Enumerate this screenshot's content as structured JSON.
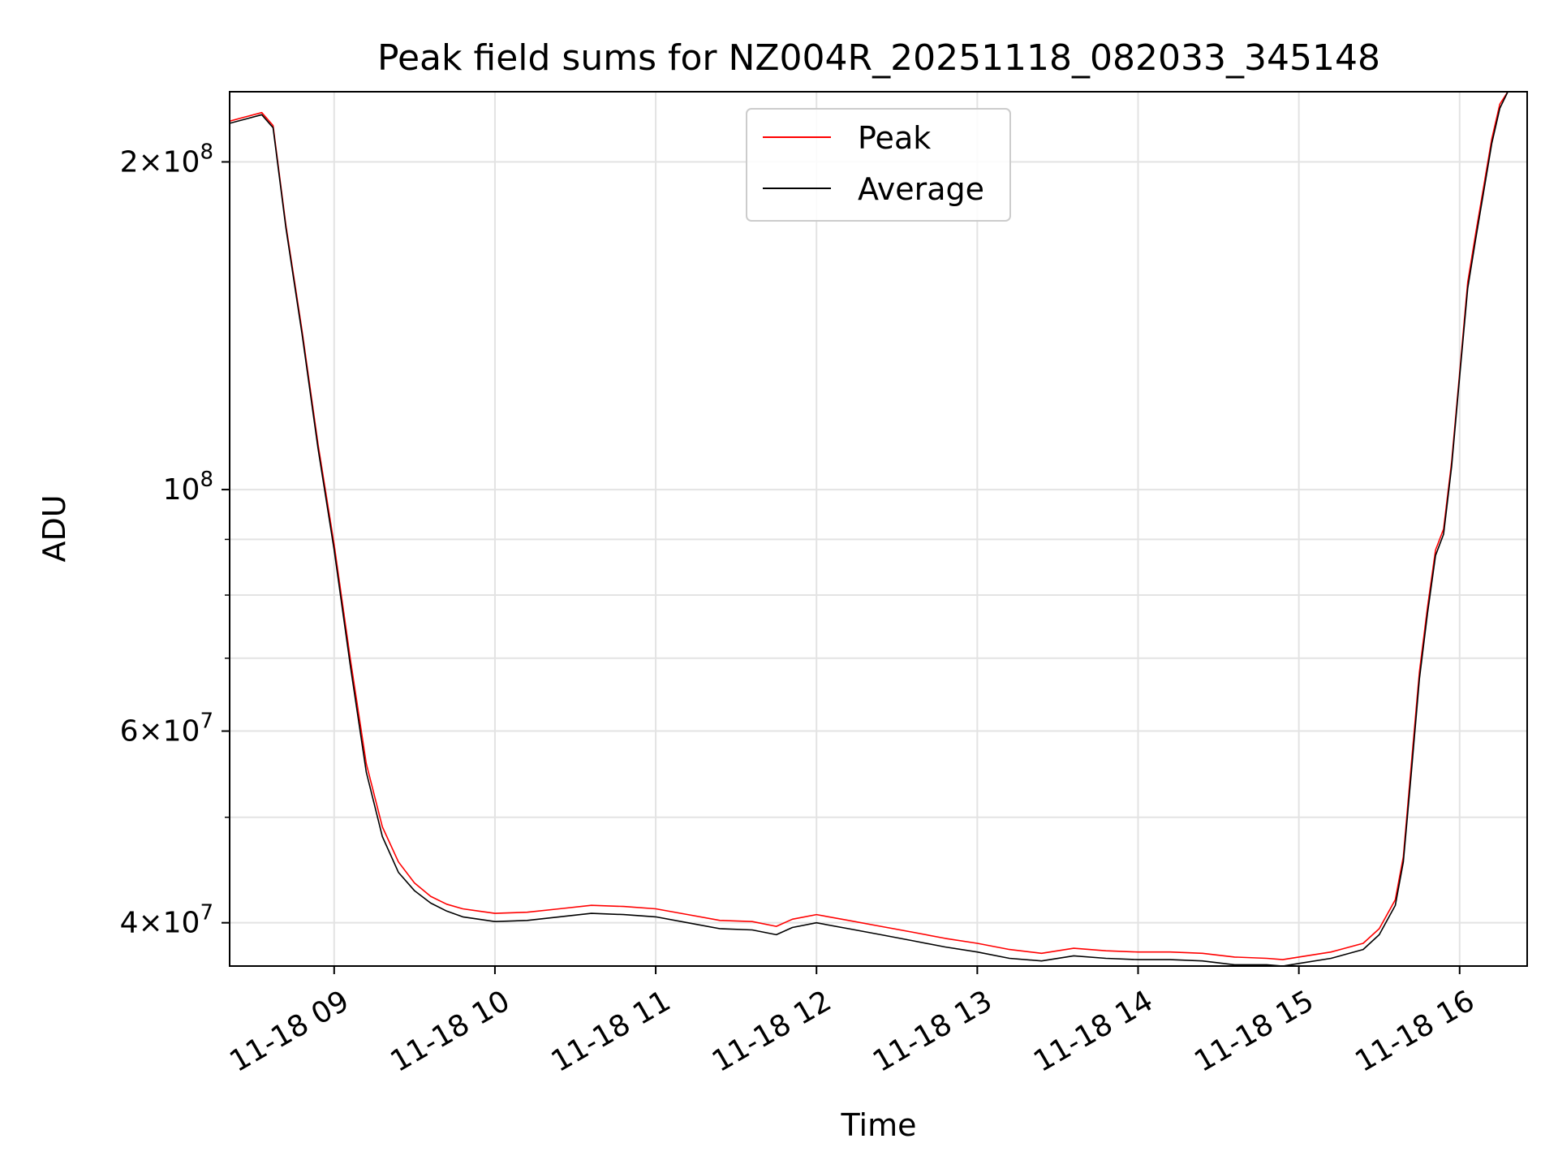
{
  "chart_data": {
    "type": "line",
    "title": "Peak field sums for NZ004R_20251118_082033_345148",
    "xlabel": "Time",
    "ylabel": "ADU",
    "yscale": "log",
    "grid": true,
    "legend_position": "top-center",
    "xlim_hours": [
      8.35,
      16.42
    ],
    "ylim": [
      36500000,
      232000000
    ],
    "x_ticks": [
      {
        "value": 9,
        "label": "11-18 09"
      },
      {
        "value": 10,
        "label": "11-18 10"
      },
      {
        "value": 11,
        "label": "11-18 11"
      },
      {
        "value": 12,
        "label": "11-18 12"
      },
      {
        "value": 13,
        "label": "11-18 13"
      },
      {
        "value": 14,
        "label": "11-18 14"
      },
      {
        "value": 15,
        "label": "11-18 15"
      },
      {
        "value": 16,
        "label": "11-18 16"
      }
    ],
    "y_major_ticks": [
      {
        "value": 40000000,
        "mantissa": "4",
        "exp": "7"
      },
      {
        "value": 60000000,
        "mantissa": "6",
        "exp": "7"
      },
      {
        "value": 100000000,
        "mantissa": "",
        "exp": "8"
      },
      {
        "value": 200000000,
        "mantissa": "2",
        "exp": "8"
      }
    ],
    "y_minor_ticks": [
      50000000,
      70000000,
      80000000,
      90000000
    ],
    "series": [
      {
        "name": "Peak",
        "color": "#ff0000",
        "x": [
          8.35,
          8.45,
          8.55,
          8.62,
          8.7,
          8.8,
          8.9,
          9.0,
          9.1,
          9.2,
          9.3,
          9.4,
          9.5,
          9.6,
          9.7,
          9.8,
          9.9,
          10.0,
          10.2,
          10.4,
          10.6,
          10.8,
          11.0,
          11.2,
          11.4,
          11.6,
          11.75,
          11.85,
          12.0,
          12.2,
          12.4,
          12.6,
          12.8,
          13.0,
          13.2,
          13.4,
          13.6,
          13.8,
          14.0,
          14.2,
          14.4,
          14.6,
          14.8,
          14.9,
          15.0,
          15.2,
          15.4,
          15.5,
          15.6,
          15.65,
          15.7,
          15.75,
          15.8,
          15.85,
          15.9,
          15.95,
          16.0,
          16.05,
          16.1,
          16.15,
          16.2,
          16.25,
          16.3
        ],
        "y": [
          218000000,
          220000000,
          222000000,
          216000000,
          175000000,
          140000000,
          110000000,
          89000000,
          70000000,
          56000000,
          49000000,
          45500000,
          43500000,
          42300000,
          41600000,
          41200000,
          41000000,
          40800000,
          40900000,
          41200000,
          41500000,
          41400000,
          41200000,
          40700000,
          40200000,
          40100000,
          39700000,
          40300000,
          40700000,
          40200000,
          39700000,
          39200000,
          38700000,
          38300000,
          37800000,
          37500000,
          37900000,
          37700000,
          37600000,
          37600000,
          37500000,
          37200000,
          37100000,
          37000000,
          37200000,
          37600000,
          38300000,
          39500000,
          42000000,
          46000000,
          56000000,
          68000000,
          78000000,
          88000000,
          92000000,
          106000000,
          128000000,
          155000000,
          172000000,
          190000000,
          210000000,
          226000000,
          232000000
        ]
      },
      {
        "name": "Average",
        "color": "#000000",
        "x": [
          8.35,
          8.45,
          8.55,
          8.62,
          8.7,
          8.8,
          8.9,
          9.0,
          9.1,
          9.2,
          9.3,
          9.4,
          9.5,
          9.6,
          9.7,
          9.8,
          9.9,
          10.0,
          10.2,
          10.4,
          10.6,
          10.8,
          11.0,
          11.2,
          11.4,
          11.6,
          11.75,
          11.85,
          12.0,
          12.2,
          12.4,
          12.6,
          12.8,
          13.0,
          13.2,
          13.4,
          13.6,
          13.8,
          14.0,
          14.2,
          14.4,
          14.6,
          14.8,
          14.9,
          15.0,
          15.2,
          15.4,
          15.5,
          15.6,
          15.65,
          15.7,
          15.75,
          15.8,
          15.85,
          15.9,
          15.95,
          16.0,
          16.05,
          16.1,
          16.15,
          16.2,
          16.25,
          16.3
        ],
        "y": [
          217000000,
          219000000,
          221000000,
          215000000,
          174000000,
          139000000,
          109000000,
          88000000,
          69000000,
          55000000,
          48000000,
          44500000,
          42800000,
          41700000,
          41000000,
          40500000,
          40300000,
          40100000,
          40200000,
          40500000,
          40800000,
          40700000,
          40500000,
          40000000,
          39500000,
          39400000,
          39000000,
          39600000,
          40000000,
          39500000,
          39000000,
          38500000,
          38000000,
          37600000,
          37100000,
          36900000,
          37300000,
          37100000,
          37000000,
          37000000,
          36900000,
          36600000,
          36600000,
          36500000,
          36700000,
          37100000,
          37800000,
          39000000,
          41500000,
          45500000,
          55000000,
          67000000,
          77000000,
          87000000,
          91000000,
          105000000,
          127000000,
          153000000,
          170000000,
          188000000,
          208000000,
          224000000,
          232000000
        ]
      }
    ]
  }
}
